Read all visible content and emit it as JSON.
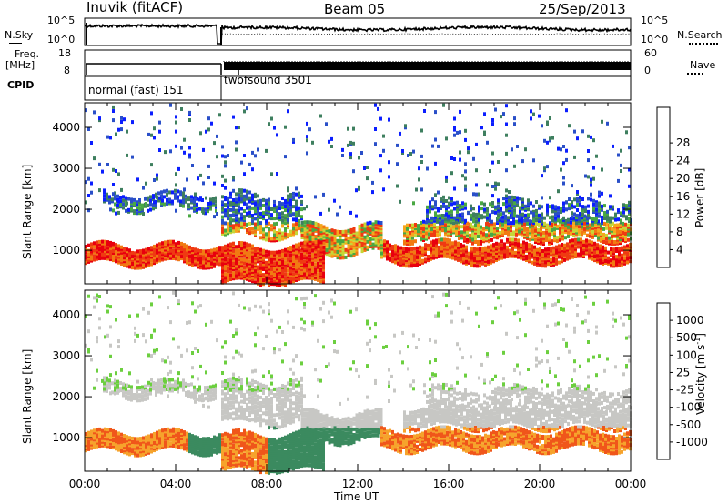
{
  "header": {
    "station": "Inuvik (fitACF)",
    "beam": "Beam 05",
    "date": "25/Sep/2013"
  },
  "strip_labels": {
    "nsky": "N.Sky",
    "nsearch": "N.Search",
    "freq_top": "Freq.",
    "freq_unit": "[MHz]",
    "nave": "Nave",
    "cpid": "CPID"
  },
  "strip_ticks": {
    "noise_left_hi": "10^5",
    "noise_left_lo": "10^0",
    "noise_right_hi": "10^5",
    "noise_right_lo": "10^0",
    "freq_hi": "18",
    "freq_lo": "8",
    "nave_hi": "60",
    "nave_lo": "0"
  },
  "cpid_segments": [
    {
      "label": "normal (fast) 151",
      "start": "00:00",
      "end": "06:00"
    },
    {
      "label": "twofsound 3501",
      "start": "06:00",
      "end": "00:00"
    }
  ],
  "colors": {
    "power": [
      "#0b1eff",
      "#2a4fc8",
      "#3e7f5f",
      "#49a843",
      "#c6d637",
      "#f6a71c",
      "#f17a13",
      "#ef3a12",
      "#e8000e"
    ],
    "velocity": [
      "#e8000e",
      "#f0561a",
      "#f6a32c",
      "#c7c7c4",
      "#c7c7c4",
      "#6ccf3f",
      "#3b8a5f",
      "#2a5bb0",
      "#1f2fd8"
    ]
  },
  "chart_data": [
    {
      "type": "heatmap",
      "name": "power",
      "title": "",
      "ylabel": "Slant Range [km]",
      "xlabel": "",
      "ylim": [
        180,
        4600
      ],
      "yticks": [
        "1000",
        "2000",
        "3000",
        "4000"
      ],
      "xticks": [
        "00:00",
        "04:00",
        "08:00",
        "12:00",
        "16:00",
        "20:00",
        "00:00"
      ],
      "colorbar": {
        "label": "Power [dB]",
        "ticks": [
          "4",
          "8",
          "12",
          "16",
          "20",
          "24",
          "28"
        ]
      }
    },
    {
      "type": "heatmap",
      "name": "velocity",
      "title": "",
      "ylabel": "Slant Range [km]",
      "xlabel": "Time UT",
      "ylim": [
        180,
        4600
      ],
      "yticks": [
        "1000",
        "2000",
        "3000",
        "4000"
      ],
      "xticks": [
        "00:00",
        "04:00",
        "08:00",
        "12:00",
        "16:00",
        "20:00",
        "00:00"
      ],
      "colorbar": {
        "label": "Velocity [m s^-1]",
        "ticks": [
          "1000",
          "500",
          "100",
          "25",
          "-25",
          "-100",
          "-500",
          "-1000"
        ]
      }
    }
  ]
}
